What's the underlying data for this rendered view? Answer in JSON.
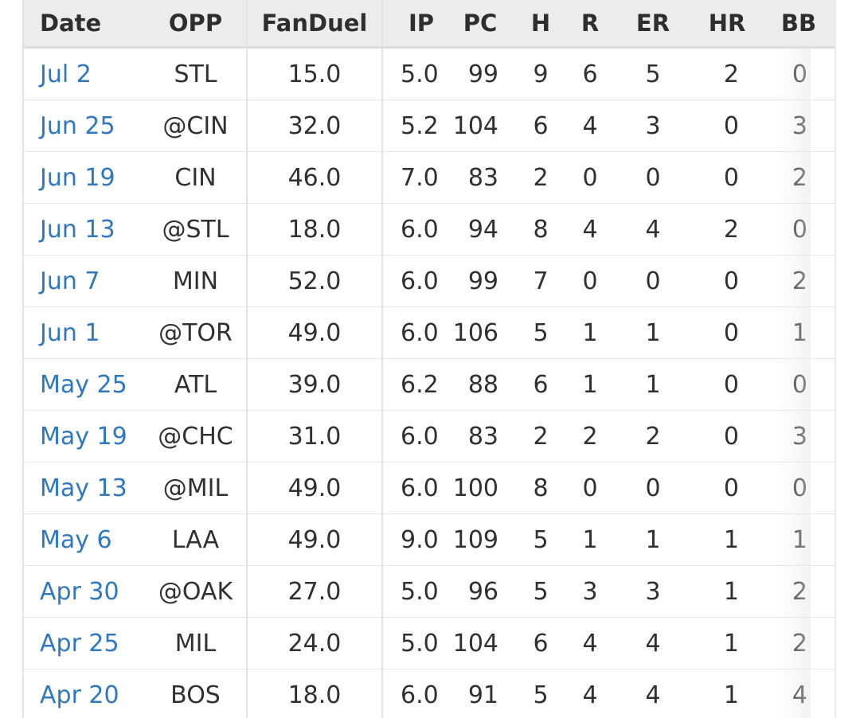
{
  "headers": {
    "date": "Date",
    "opp": "OPP",
    "fanduel": "FanDuel",
    "ip": "IP",
    "pc": "PC",
    "h": "H",
    "r": "R",
    "er": "ER",
    "hr": "HR",
    "bb": "BB"
  },
  "colors": {
    "link": "#2f78c0",
    "header_bg": "#ececec"
  },
  "rows": [
    {
      "date": "Jul 2",
      "opp": "STL",
      "fanduel": "15.0",
      "ip": "5.0",
      "pc": "99",
      "h": "9",
      "r": "6",
      "er": "5",
      "hr": "2",
      "bb": "0"
    },
    {
      "date": "Jun 25",
      "opp": "@CIN",
      "fanduel": "32.0",
      "ip": "5.2",
      "pc": "104",
      "h": "6",
      "r": "4",
      "er": "3",
      "hr": "0",
      "bb": "3"
    },
    {
      "date": "Jun 19",
      "opp": "CIN",
      "fanduel": "46.0",
      "ip": "7.0",
      "pc": "83",
      "h": "2",
      "r": "0",
      "er": "0",
      "hr": "0",
      "bb": "2"
    },
    {
      "date": "Jun 13",
      "opp": "@STL",
      "fanduel": "18.0",
      "ip": "6.0",
      "pc": "94",
      "h": "8",
      "r": "4",
      "er": "4",
      "hr": "2",
      "bb": "0"
    },
    {
      "date": "Jun 7",
      "opp": "MIN",
      "fanduel": "52.0",
      "ip": "6.0",
      "pc": "99",
      "h": "7",
      "r": "0",
      "er": "0",
      "hr": "0",
      "bb": "2"
    },
    {
      "date": "Jun 1",
      "opp": "@TOR",
      "fanduel": "49.0",
      "ip": "6.0",
      "pc": "106",
      "h": "5",
      "r": "1",
      "er": "1",
      "hr": "0",
      "bb": "1"
    },
    {
      "date": "May 25",
      "opp": "ATL",
      "fanduel": "39.0",
      "ip": "6.2",
      "pc": "88",
      "h": "6",
      "r": "1",
      "er": "1",
      "hr": "0",
      "bb": "0"
    },
    {
      "date": "May 19",
      "opp": "@CHC",
      "fanduel": "31.0",
      "ip": "6.0",
      "pc": "83",
      "h": "2",
      "r": "2",
      "er": "2",
      "hr": "0",
      "bb": "3"
    },
    {
      "date": "May 13",
      "opp": "@MIL",
      "fanduel": "49.0",
      "ip": "6.0",
      "pc": "100",
      "h": "8",
      "r": "0",
      "er": "0",
      "hr": "0",
      "bb": "0"
    },
    {
      "date": "May 6",
      "opp": "LAA",
      "fanduel": "49.0",
      "ip": "9.0",
      "pc": "109",
      "h": "5",
      "r": "1",
      "er": "1",
      "hr": "1",
      "bb": "1"
    },
    {
      "date": "Apr 30",
      "opp": "@OAK",
      "fanduel": "27.0",
      "ip": "5.0",
      "pc": "96",
      "h": "5",
      "r": "3",
      "er": "3",
      "hr": "1",
      "bb": "2"
    },
    {
      "date": "Apr 25",
      "opp": "MIL",
      "fanduel": "24.0",
      "ip": "5.0",
      "pc": "104",
      "h": "6",
      "r": "4",
      "er": "4",
      "hr": "1",
      "bb": "2"
    },
    {
      "date": "Apr 20",
      "opp": "BOS",
      "fanduel": "18.0",
      "ip": "6.0",
      "pc": "91",
      "h": "5",
      "r": "4",
      "er": "4",
      "hr": "1",
      "bb": "4"
    }
  ]
}
